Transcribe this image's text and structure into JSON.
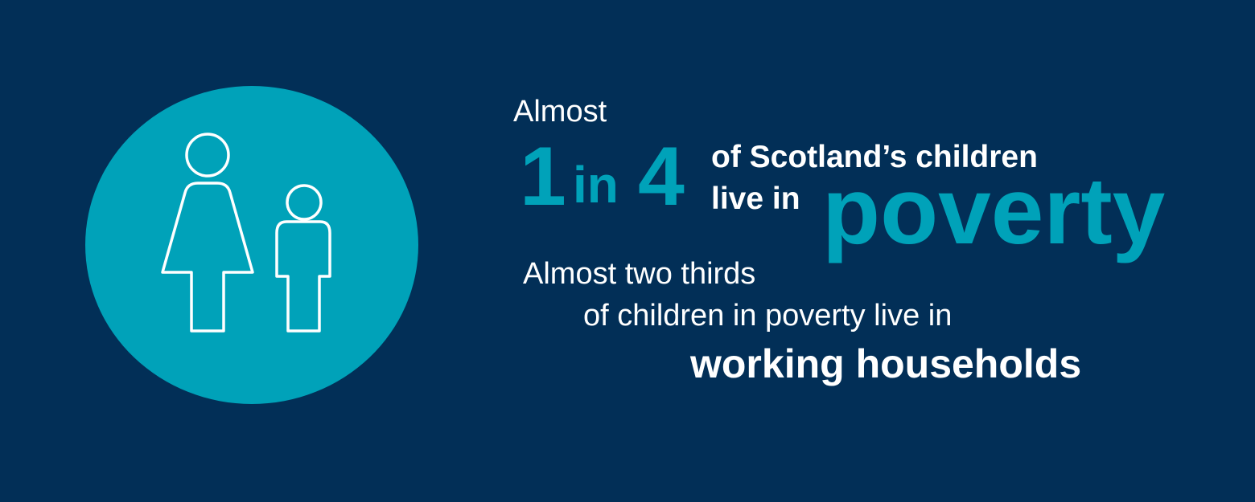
{
  "colors": {
    "background": "#022f57",
    "teal": "#00a2b9",
    "white": "#ffffff"
  },
  "icon": {
    "name": "adult-and-child-icon"
  },
  "headline": {
    "lead": "Almost",
    "ratio_first": "1",
    "ratio_in": "in",
    "ratio_second": "4",
    "line_one": "of Scotland’s children",
    "line_two": "live in",
    "emphasis": "poverty"
  },
  "subhead": {
    "line_one": "Almost two thirds",
    "line_two": "of children in poverty live in",
    "emphasis": "working households"
  }
}
